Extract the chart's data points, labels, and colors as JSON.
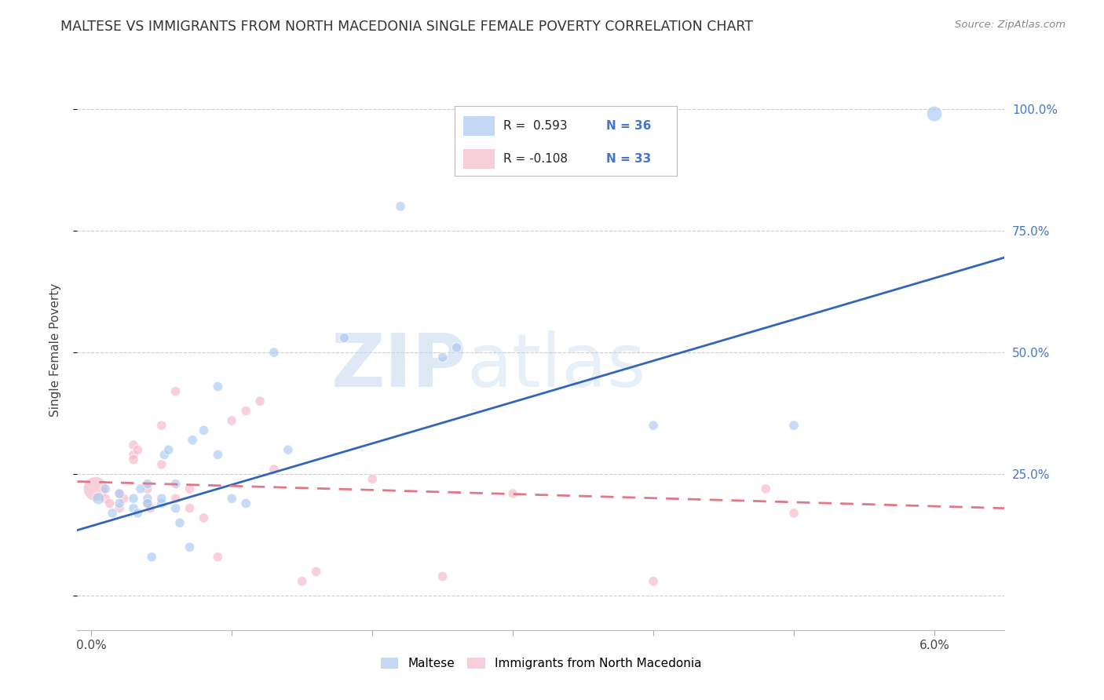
{
  "title": "MALTESE VS IMMIGRANTS FROM NORTH MACEDONIA SINGLE FEMALE POVERTY CORRELATION CHART",
  "source": "Source: ZipAtlas.com",
  "ylabel": "Single Female Poverty",
  "y_ticks": [
    0.0,
    0.25,
    0.5,
    0.75,
    1.0
  ],
  "y_tick_labels": [
    "",
    "25.0%",
    "50.0%",
    "75.0%",
    "100.0%"
  ],
  "x_ticks": [
    0.0,
    0.01,
    0.02,
    0.03,
    0.04,
    0.05,
    0.06
  ],
  "x_tick_labels": [
    "0.0%",
    "",
    "",
    "",
    "",
    "",
    "6.0%"
  ],
  "xlim": [
    -0.001,
    0.065
  ],
  "ylim": [
    -0.07,
    1.08
  ],
  "blue_color": "#a8c8f0",
  "pink_color": "#f5b8c8",
  "blue_line_color": "#3366bb",
  "pink_line_color": "#e07888",
  "legend_R1": "R =  0.593",
  "legend_N1": "N = 36",
  "legend_R2": "R = -0.108",
  "legend_N2": "N = 33",
  "watermark_zip": "ZIP",
  "watermark_atlas": "atlas",
  "blue_scatter_x": [
    0.0005,
    0.001,
    0.0015,
    0.002,
    0.002,
    0.003,
    0.003,
    0.0033,
    0.0035,
    0.004,
    0.004,
    0.004,
    0.0043,
    0.005,
    0.005,
    0.0052,
    0.0055,
    0.006,
    0.006,
    0.0063,
    0.007,
    0.0072,
    0.008,
    0.009,
    0.009,
    0.01,
    0.011,
    0.013,
    0.014,
    0.018,
    0.022,
    0.025,
    0.026,
    0.04,
    0.05,
    0.06
  ],
  "blue_scatter_y": [
    0.2,
    0.22,
    0.17,
    0.19,
    0.21,
    0.2,
    0.18,
    0.17,
    0.22,
    0.23,
    0.2,
    0.19,
    0.08,
    0.19,
    0.2,
    0.29,
    0.3,
    0.23,
    0.18,
    0.15,
    0.1,
    0.32,
    0.34,
    0.43,
    0.29,
    0.2,
    0.19,
    0.5,
    0.3,
    0.53,
    0.8,
    0.49,
    0.51,
    0.35,
    0.35,
    0.99
  ],
  "blue_scatter_size": [
    120,
    80,
    80,
    80,
    80,
    80,
    80,
    80,
    80,
    80,
    80,
    80,
    80,
    80,
    80,
    80,
    80,
    80,
    80,
    80,
    80,
    80,
    80,
    80,
    80,
    80,
    80,
    80,
    80,
    80,
    80,
    80,
    80,
    80,
    80,
    200
  ],
  "pink_scatter_x": [
    0.0003,
    0.001,
    0.0013,
    0.002,
    0.002,
    0.0023,
    0.003,
    0.003,
    0.003,
    0.0033,
    0.004,
    0.004,
    0.0042,
    0.005,
    0.005,
    0.006,
    0.006,
    0.007,
    0.007,
    0.008,
    0.009,
    0.01,
    0.011,
    0.012,
    0.013,
    0.015,
    0.016,
    0.02,
    0.025,
    0.03,
    0.04,
    0.048,
    0.05
  ],
  "pink_scatter_y": [
    0.22,
    0.2,
    0.19,
    0.21,
    0.18,
    0.2,
    0.31,
    0.29,
    0.28,
    0.3,
    0.22,
    0.19,
    0.18,
    0.35,
    0.27,
    0.2,
    0.42,
    0.22,
    0.18,
    0.16,
    0.08,
    0.36,
    0.38,
    0.4,
    0.26,
    0.03,
    0.05,
    0.24,
    0.04,
    0.21,
    0.03,
    0.22,
    0.17
  ],
  "pink_scatter_size": [
    500,
    80,
    80,
    80,
    80,
    80,
    80,
    80,
    80,
    80,
    80,
    80,
    80,
    80,
    80,
    80,
    80,
    80,
    80,
    80,
    80,
    80,
    80,
    80,
    80,
    80,
    80,
    80,
    80,
    80,
    80,
    80,
    80
  ],
  "blue_line_x0": -0.001,
  "blue_line_x1": 0.065,
  "blue_line_y0": 0.135,
  "blue_line_y1": 0.695,
  "pink_line_x0": -0.001,
  "pink_line_x1": 0.065,
  "pink_line_y0": 0.235,
  "pink_line_y1": 0.18,
  "grid_color": "#cccccc",
  "background_color": "#ffffff",
  "title_fontsize": 12.5,
  "axis_label_fontsize": 11,
  "tick_fontsize": 11,
  "right_tick_color": "#4477cc"
}
